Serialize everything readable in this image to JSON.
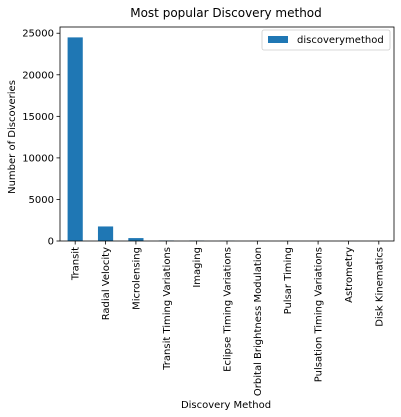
{
  "chart_data": {
    "type": "bar",
    "title": "Most popular Discovery method",
    "xlabel": "Discovery Method",
    "ylabel": "Number of Discoveries",
    "categories": [
      "Transit",
      "Radial Velocity",
      "Microlensing",
      "Transit Timing Variations",
      "Imaging",
      "Eclipse Timing Variations",
      "Orbital Brightness Modulation",
      "Pulsar Timing",
      "Pulsation Timing Variations",
      "Astrometry",
      "Disk Kinematics"
    ],
    "series": [
      {
        "name": "discoverymethod",
        "values": [
          24500,
          1750,
          350,
          60,
          40,
          25,
          9,
          7,
          2,
          3,
          1
        ]
      }
    ],
    "ylim": [
      0,
      25750
    ],
    "yticks": [
      0,
      5000,
      10000,
      15000,
      20000,
      25000
    ],
    "ytick_labels": [
      "0",
      "5000",
      "10000",
      "15000",
      "20000",
      "25000"
    ],
    "grid": false,
    "legend_position": "top-right",
    "colors": {
      "bar": "#1f77b4",
      "axis": "#000000"
    }
  }
}
